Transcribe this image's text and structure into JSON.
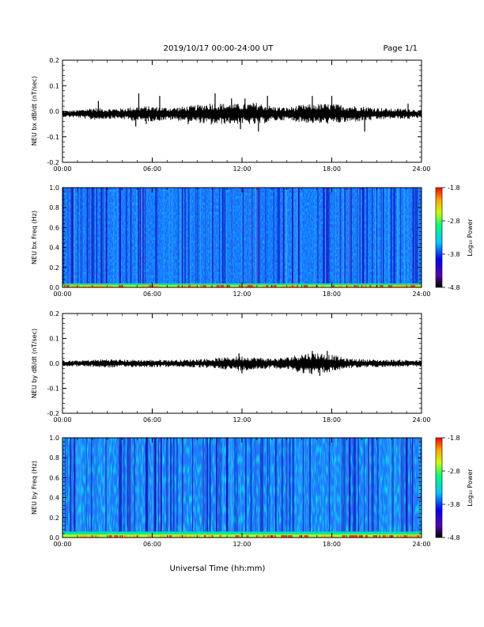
{
  "header": {
    "title": "2019/10/17  00:00-24:00 UT",
    "page": "Page 1/1"
  },
  "xlabel": "Universal Time (hh:mm)",
  "x_ticks": [
    "00:00",
    "06:00",
    "12:00",
    "18:00",
    "24:00"
  ],
  "colors": {
    "trace": "#000000",
    "colorbar": [
      "#000000",
      "#5a00b0",
      "#0000ff",
      "#00c8ff",
      "#00ff7a",
      "#c8ff00",
      "#ffa000",
      "#ff0000"
    ]
  },
  "chart_data": [
    {
      "type": "line",
      "title": "",
      "xlabel": "",
      "ylabel": "NEU bx dB/dt (nT/sec)",
      "xlim": [
        0,
        24
      ],
      "ylim": [
        -0.2,
        0.2
      ],
      "yticks": [
        "0.2",
        "0.1",
        "0.0",
        "-0.1",
        "-0.2"
      ],
      "baseline": -0.01,
      "envelope": {
        "x": [
          0,
          1,
          2,
          3,
          4,
          5,
          6,
          7,
          8,
          9,
          10,
          11,
          12,
          13,
          14,
          15,
          16,
          17,
          18,
          19,
          20,
          21,
          22,
          23,
          24
        ],
        "amplitude": [
          0.012,
          0.015,
          0.025,
          0.02,
          0.022,
          0.03,
          0.03,
          0.025,
          0.028,
          0.035,
          0.045,
          0.04,
          0.04,
          0.045,
          0.03,
          0.025,
          0.035,
          0.04,
          0.04,
          0.035,
          0.03,
          0.025,
          0.02,
          0.022,
          0.015
        ]
      },
      "peaks": {
        "x": [
          2.4,
          4.9,
          5.1,
          5.6,
          6.5,
          8.4,
          10.2,
          11.3,
          11.9,
          12.2,
          13.1,
          13.7,
          16.7,
          18.0,
          20.2,
          23.1
        ],
        "y": [
          0.04,
          -0.06,
          0.07,
          -0.05,
          0.06,
          -0.05,
          0.07,
          0.05,
          -0.07,
          0.05,
          -0.08,
          0.06,
          0.06,
          0.06,
          -0.08,
          0.03
        ]
      }
    },
    {
      "type": "heatmap",
      "title": "",
      "xlabel": "",
      "ylabel": "NEU bx Freq (Hz)",
      "xlim": [
        0,
        24
      ],
      "ylim": [
        0,
        1.0
      ],
      "yticks": [
        "1.0",
        "0.8",
        "0.6",
        "0.4",
        "0.2",
        "0.0"
      ],
      "colorbar": {
        "label": "Log₁₀ Power",
        "ticks": [
          "-1.8",
          "-2.8",
          "-3.8",
          "-4.8"
        ],
        "range": [
          -4.8,
          -1.8
        ]
      },
      "low_freq_band_hz": 0.04
    },
    {
      "type": "line",
      "title": "",
      "xlabel": "",
      "ylabel": "NEU by dB/dt (nT/sec)",
      "xlim": [
        0,
        24
      ],
      "ylim": [
        -0.2,
        0.2
      ],
      "yticks": [
        "0.2",
        "0.1",
        "0.0",
        "-0.1",
        "-0.2"
      ],
      "baseline": 0.0,
      "envelope": {
        "x": [
          0,
          1,
          2,
          3,
          4,
          5,
          6,
          7,
          8,
          9,
          10,
          11,
          12,
          13,
          14,
          15,
          16,
          17,
          18,
          19,
          20,
          21,
          22,
          23,
          24
        ],
        "amplitude": [
          0.012,
          0.012,
          0.015,
          0.018,
          0.015,
          0.015,
          0.015,
          0.015,
          0.015,
          0.018,
          0.02,
          0.025,
          0.03,
          0.025,
          0.02,
          0.025,
          0.04,
          0.045,
          0.035,
          0.02,
          0.018,
          0.015,
          0.015,
          0.015,
          0.012
        ]
      },
      "peaks": {
        "x": [
          11.8,
          12.0,
          16.7,
          17.2,
          17.7
        ],
        "y": [
          0.04,
          -0.04,
          0.05,
          -0.05,
          0.05
        ]
      }
    },
    {
      "type": "heatmap",
      "title": "",
      "xlabel": "",
      "ylabel": "NEU by Freq (Hz)",
      "xlim": [
        0,
        24
      ],
      "ylim": [
        0,
        1.0
      ],
      "yticks": [
        "1.0",
        "0.8",
        "0.6",
        "0.4",
        "0.2",
        "0.0"
      ],
      "colorbar": {
        "label": "Log₁₀ Power",
        "ticks": [
          "-1.8",
          "-2.8",
          "-3.8",
          "-4.8"
        ],
        "range": [
          -4.8,
          -1.8
        ]
      },
      "low_freq_band_hz": 0.06
    }
  ]
}
